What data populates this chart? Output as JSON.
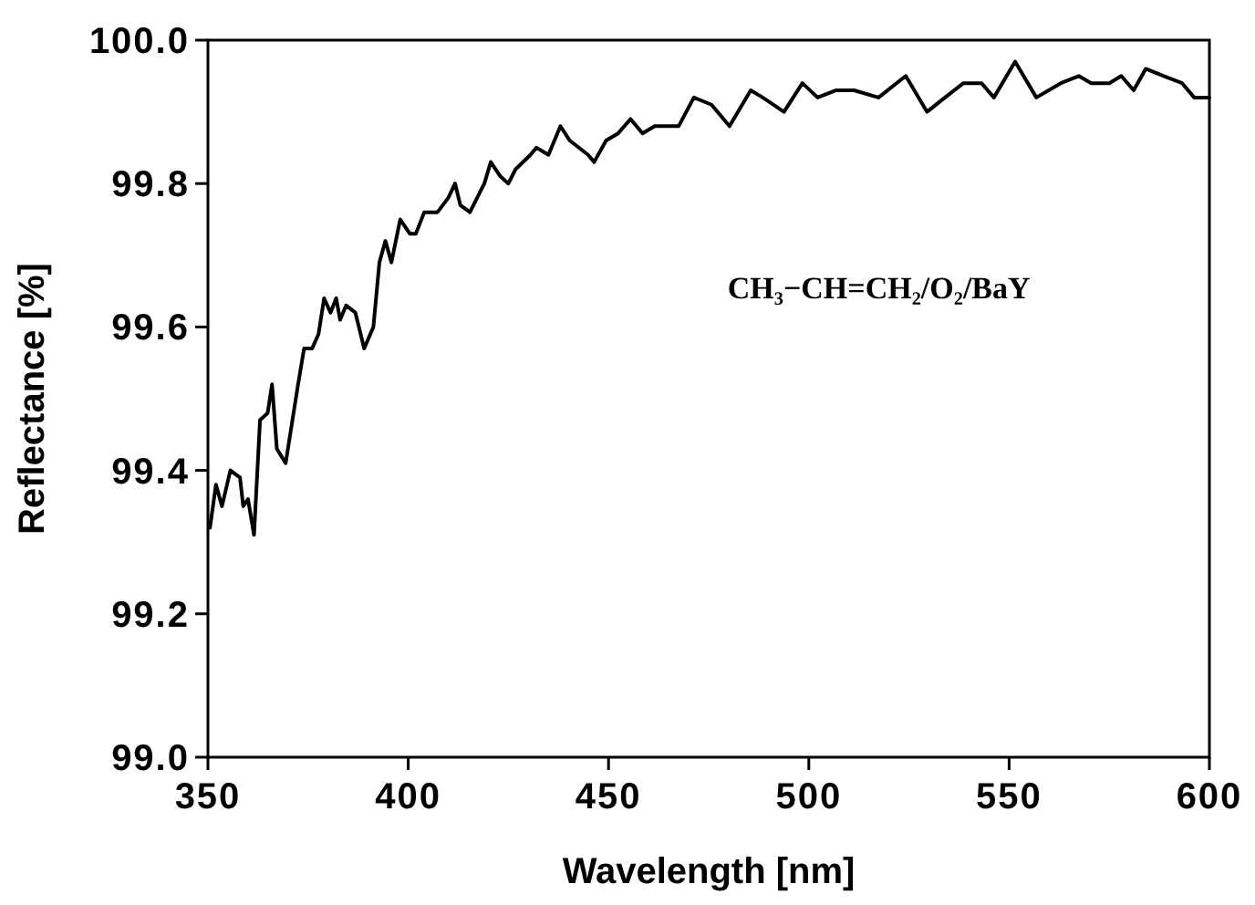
{
  "chart_data": {
    "type": "line",
    "xlabel": "Wavelength  [nm]",
    "ylabel": "Reflectance [%]",
    "xlim": [
      350,
      600
    ],
    "xticks": [
      350,
      400,
      450,
      500,
      550,
      600
    ],
    "ylim": [
      99.0,
      100.0
    ],
    "yticks": [
      {
        "value": 99.0,
        "label": "99.0"
      },
      {
        "value": 99.2,
        "label": "99.2"
      },
      {
        "value": 99.4,
        "label": "99.4"
      },
      {
        "value": 99.6,
        "label": "99.6"
      },
      {
        "value": 99.8,
        "label": "99.8"
      },
      {
        "value": 100.0,
        "label": "100.0"
      }
    ],
    "grid": false,
    "marker": "none",
    "line_style": "solid",
    "annotations": [
      "CH₃−CH=CH₂/O₂/BaY"
    ],
    "series": [
      {
        "color": "#000000",
        "x": [
          350.5,
          352,
          353.5,
          355.6,
          358,
          358.8,
          360,
          361.5,
          363,
          364.9,
          366,
          367.2,
          369.4,
          372.5,
          374,
          376,
          377.6,
          379,
          380.6,
          382,
          383,
          384.5,
          386.8,
          389,
          391.3,
          392.8,
          394.3,
          395.8,
          398,
          400.4,
          401.9,
          404,
          407.3,
          410,
          411.7,
          413,
          415.4,
          419,
          420.6,
          423,
          425,
          426.8,
          430.5,
          432,
          435,
          438,
          440.3,
          444.9,
          446.4,
          449.4,
          452.4,
          455.5,
          458.5,
          461.5,
          467.5,
          471.3,
          475.7,
          480.2,
          485.5,
          488.5,
          493.8,
          498.4,
          502.2,
          506.7,
          511.3,
          517.4,
          524.2,
          529.5,
          534,
          538.6,
          543.1,
          546.2,
          551.5,
          556.8,
          562.9,
          567.4,
          570.5,
          575,
          578,
          581.1,
          584.1,
          588.6,
          593.2,
          596.2,
          600
        ],
        "values": [
          99.32,
          99.38,
          99.35,
          99.4,
          99.39,
          99.35,
          99.36,
          99.31,
          99.47,
          99.48,
          99.52,
          99.43,
          99.41,
          99.52,
          99.57,
          99.57,
          99.59,
          99.64,
          99.62,
          99.64,
          99.61,
          99.63,
          99.62,
          99.57,
          99.6,
          99.69,
          99.72,
          99.69,
          99.75,
          99.73,
          99.73,
          99.76,
          99.76,
          99.78,
          99.8,
          99.77,
          99.76,
          99.8,
          99.83,
          99.81,
          99.8,
          99.82,
          99.84,
          99.85,
          99.84,
          99.88,
          99.86,
          99.84,
          99.83,
          99.86,
          99.87,
          99.89,
          99.87,
          99.88,
          99.88,
          99.92,
          99.91,
          99.88,
          99.93,
          99.92,
          99.9,
          99.94,
          99.92,
          99.93,
          99.93,
          99.92,
          99.95,
          99.9,
          99.92,
          99.94,
          99.94,
          99.92,
          99.97,
          99.92,
          99.94,
          99.95,
          99.94,
          99.94,
          99.95,
          99.93,
          99.96,
          99.95,
          99.94,
          99.92,
          99.92
        ]
      }
    ]
  }
}
